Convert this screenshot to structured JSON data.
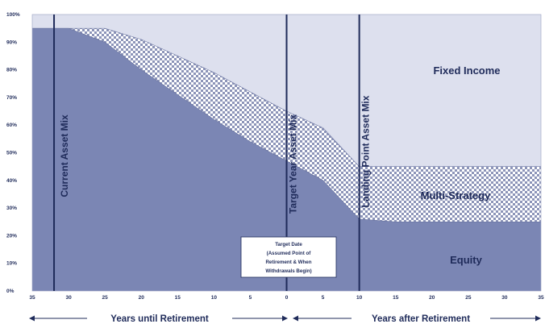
{
  "chart_data": {
    "type": "area",
    "x_ticks": [
      "35",
      "30",
      "25",
      "20",
      "15",
      "10",
      "5",
      "0",
      "5",
      "10",
      "15",
      "20",
      "25",
      "30",
      "35"
    ],
    "y_ticks": [
      "0%",
      "10%",
      "20%",
      "30%",
      "40%",
      "50%",
      "60%",
      "70%",
      "80%",
      "90%",
      "100%"
    ],
    "ylim": [
      0,
      100
    ],
    "series": [
      {
        "name": "Equity",
        "points": [
          [
            -35,
            95
          ],
          [
            -30,
            95
          ],
          [
            -25,
            90
          ],
          [
            -20,
            80
          ],
          [
            -15,
            71
          ],
          [
            -10,
            62
          ],
          [
            -5,
            54
          ],
          [
            0,
            47
          ],
          [
            5,
            40
          ],
          [
            10,
            26
          ],
          [
            15,
            25
          ],
          [
            20,
            25
          ],
          [
            25,
            25
          ],
          [
            30,
            25
          ],
          [
            35,
            25
          ]
        ]
      },
      {
        "name": "Multi-Strategy",
        "points": [
          [
            -35,
            95
          ],
          [
            -30,
            95
          ],
          [
            -25,
            95
          ],
          [
            -20,
            91
          ],
          [
            -15,
            85
          ],
          [
            -10,
            79
          ],
          [
            -5,
            72
          ],
          [
            0,
            65
          ],
          [
            5,
            59
          ],
          [
            10,
            45
          ],
          [
            15,
            45
          ],
          [
            20,
            45
          ],
          [
            25,
            45
          ],
          [
            30,
            45
          ],
          [
            35,
            45
          ]
        ]
      },
      {
        "name": "Fixed Income",
        "points": [
          [
            -35,
            100
          ],
          [
            35,
            100
          ]
        ]
      }
    ],
    "region_labels": {
      "fixed_income": "Fixed Income",
      "multi_strategy": "Multi-Strategy",
      "equity": "Equity"
    },
    "vertical_markers": [
      {
        "x": -32,
        "label": "Current Asset Mix"
      },
      {
        "x": 0,
        "label": "Target Year Asset Mix"
      },
      {
        "x": 10,
        "label": "Landing Point Asset Mix"
      }
    ],
    "annotation": {
      "lines": [
        "Target Date",
        "(Assumed Point of",
        "Retirement & When",
        "Withdrawals Begin)"
      ]
    },
    "xlabel_left": "Years until Retirement",
    "xlabel_right": "Years after Retirement",
    "colors": {
      "equity": "#7b86b4",
      "fixed_income": "#dde0ee",
      "multi_strategy_a": "#ffffff",
      "multi_strategy_b": "#8c94b8",
      "line": "#1f2b5a",
      "text": "#1f2b5a"
    }
  }
}
